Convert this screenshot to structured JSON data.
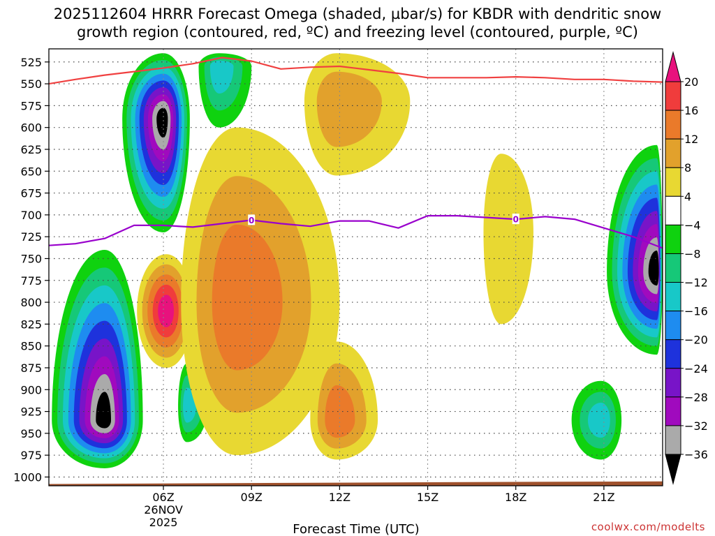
{
  "title": {
    "line1": "2025112604 HRRR Forecast Omega (shaded, µbar/s) for KBDR with dendritic snow",
    "line2": "growth region (contoured, red, ºC) and freezing level (contoured, purple, ºC)"
  },
  "credit": "coolwx.com/modelts",
  "chart_data": {
    "type": "heatmap",
    "title": "2025112604 HRRR Forecast Omega (shaded, µbar/s) for KBDR with dendritic snow growth region (contoured, red, ºC) and freezing level (contoured, purple, ºC)",
    "xlabel": "Forecast Time (UTC)",
    "ylabel": "",
    "x_units": "hours after 2025-11-26 00Z",
    "xlim": [
      2.1,
      23.0
    ],
    "ylim": [
      1010,
      510
    ],
    "x_ticks": [
      {
        "x": 6,
        "label": "06Z",
        "sub1": "26NOV",
        "sub2": "2025"
      },
      {
        "x": 9,
        "label": "09Z"
      },
      {
        "x": 12,
        "label": "12Z"
      },
      {
        "x": 15,
        "label": "15Z"
      },
      {
        "x": 18,
        "label": "18Z"
      },
      {
        "x": 21,
        "label": "21Z"
      }
    ],
    "y_ticks": [
      525,
      550,
      575,
      600,
      625,
      650,
      675,
      700,
      725,
      750,
      775,
      800,
      825,
      850,
      875,
      900,
      925,
      950,
      975,
      1000
    ],
    "colorbar": {
      "levels": [
        -36,
        -32,
        -28,
        -24,
        -20,
        -16,
        -12,
        -8,
        -4,
        4,
        8,
        12,
        16,
        20
      ],
      "labels": [
        "20",
        "16",
        "12",
        "8",
        "4",
        "−4",
        "−8",
        "−12",
        "−16",
        "−20",
        "−24",
        "−28",
        "−32",
        "−36"
      ],
      "colors": [
        "#e8127d",
        "#f03c3c",
        "#ea7a2a",
        "#e2a12c",
        "#e8d832",
        "#ffffff",
        "#0fd20f",
        "#16c878",
        "#18c8c8",
        "#1e8cf0",
        "#1e32dc",
        "#7814c8",
        "#a00abe",
        "#aaaaaa",
        "#000000"
      ],
      "color_ranges": [
        ">20",
        "16 to 20",
        "12 to 16",
        "8 to 12",
        "4 to 8",
        "-4 to 4",
        "-8 to -4",
        "-12 to -8",
        "-16 to -12",
        "-20 to -16",
        "-24 to -20",
        "-28 to -24",
        "-32 to -28",
        "-36 to -32",
        "<-36"
      ]
    },
    "omega_features": [
      {
        "name": "early-column-upward",
        "t": 6.0,
        "p": 590,
        "peak": -40,
        "span_t": [
          4.6,
          6.9
        ],
        "span_p": [
          515,
          720
        ]
      },
      {
        "name": "early-column-teal-top",
        "t": 7.9,
        "p": 530,
        "peak": -14,
        "span_t": [
          7.2,
          9.0
        ],
        "span_p": [
          515,
          600
        ]
      },
      {
        "name": "lower-left-upward",
        "t": 4.0,
        "p": 935,
        "peak": -40,
        "span_t": [
          2.2,
          5.3
        ],
        "span_p": [
          740,
          990
        ]
      },
      {
        "name": "lower-left-downward-core",
        "t": 6.1,
        "p": 810,
        "peak": 21,
        "span_t": [
          5.1,
          7.0
        ],
        "span_p": [
          745,
          875
        ]
      },
      {
        "name": "small-teal-cell",
        "t": 6.8,
        "p": 920,
        "peak": -14,
        "span_t": [
          6.5,
          7.5
        ],
        "span_p": [
          870,
          960
        ]
      },
      {
        "name": "central-positive-band",
        "t": 8.5,
        "p": 800,
        "peak": 14,
        "span_t": [
          6.6,
          12.0
        ],
        "span_p": [
          600,
          975
        ]
      },
      {
        "name": "upper-positive-plume",
        "t": 11.9,
        "p": 570,
        "peak": 10,
        "span_t": [
          10.8,
          14.4
        ],
        "span_p": [
          515,
          655
        ]
      },
      {
        "name": "lower-positive-cell",
        "t": 11.9,
        "p": 935,
        "peak": 14,
        "span_t": [
          11.0,
          13.3
        ],
        "span_p": [
          845,
          980
        ]
      },
      {
        "name": "mid-positive-lobe",
        "t": 17.5,
        "p": 720,
        "peak": 5,
        "span_t": [
          16.9,
          18.6
        ],
        "span_p": [
          630,
          825
        ]
      },
      {
        "name": "right-upward-column",
        "t": 22.8,
        "p": 765,
        "peak": -40,
        "span_t": [
          21.1,
          23.0
        ],
        "span_p": [
          620,
          860
        ]
      },
      {
        "name": "right-lower-green",
        "t": 20.9,
        "p": 935,
        "peak": -14,
        "span_t": [
          19.9,
          21.6
        ],
        "span_p": [
          890,
          980
        ]
      }
    ],
    "series": [
      {
        "name": "dendritic snow growth region (red)",
        "color": "#f04040",
        "x": [
          2.1,
          3.0,
          4.0,
          5.0,
          6.0,
          7.0,
          8.0,
          9.0,
          10.0,
          11.0,
          12.0,
          13.0,
          14.0,
          15.0,
          16.0,
          17.0,
          18.0,
          19.0,
          20.0,
          21.0,
          22.0,
          23.0
        ],
        "y": [
          550,
          545,
          540,
          536,
          532,
          527,
          520,
          524,
          533,
          531,
          530,
          534,
          538,
          543,
          543,
          543,
          542,
          543,
          545,
          545,
          547,
          548
        ]
      },
      {
        "name": "freezing level (purple)",
        "color": "#9900cc",
        "contour_label": "0",
        "label_x": [
          9.0,
          18.0
        ],
        "x": [
          2.1,
          3.0,
          4.0,
          5.0,
          6.0,
          7.0,
          8.0,
          9.0,
          10.0,
          11.0,
          12.0,
          13.0,
          14.0,
          15.0,
          16.0,
          17.0,
          18.0,
          19.0,
          20.0,
          21.0,
          22.0,
          23.0
        ],
        "y": [
          735,
          733,
          727,
          712,
          712,
          714,
          710,
          706,
          710,
          713,
          707,
          707,
          715,
          701,
          701,
          703,
          705,
          702,
          705,
          715,
          725,
          738
        ]
      }
    ],
    "terrain_band": {
      "color": "#a0522d",
      "top_p": [
        1008,
        1006,
        1005
      ],
      "top_x": [
        2.1,
        15.0,
        23.0
      ]
    }
  }
}
